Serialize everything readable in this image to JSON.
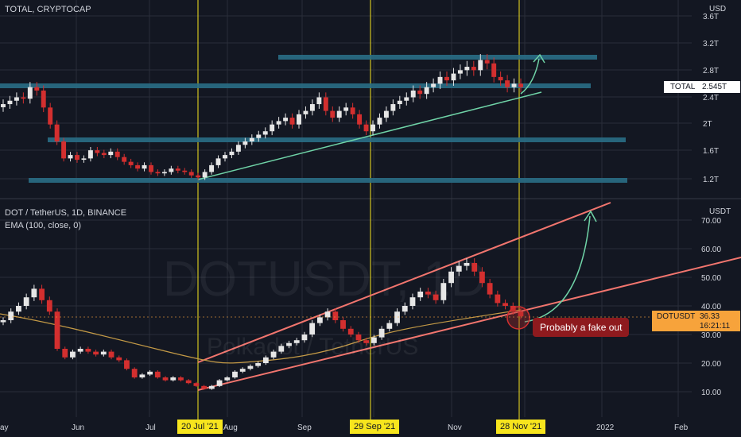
{
  "top_panel": {
    "title": "TOTAL, CRYPTOCAP",
    "currency": "USD",
    "ticker_label": "TOTAL",
    "ticker_value": "2.545T"
  },
  "bottom_panel": {
    "title": "DOT / TetherUS, 1D, BINANCE",
    "indicator": "EMA (100, close, 0)",
    "currency": "USDT",
    "ticker_label": "DOTUSDT",
    "ticker_value": "36.33",
    "countdown": "16:21:11",
    "watermark_big": "DOTUSDT, 1D",
    "watermark_small": "Polkadot / TetherUS"
  },
  "annotation": "Probably a fake out",
  "x_axis": {
    "months": [
      "ay",
      "Jun",
      "Jul",
      "Aug",
      "Sep",
      "Nov",
      "2022",
      "Feb"
    ],
    "highlighted_dates": [
      "20 Jul '21",
      "29 Sep '21",
      "28 Nov '21"
    ]
  },
  "colors": {
    "background": "#131722",
    "up_candle": "#e6e6e6",
    "down_candle": "#d32f2f",
    "support_zone": "#2a6e86",
    "trendline_top": "#f2756e",
    "trendline_green": "#6fd3a7",
    "ema": "#c49a46",
    "vertical_marker": "#f7e51d",
    "annotation_bg": "#8e1a1e"
  },
  "chart_data": [
    {
      "type": "candlestick",
      "symbol": "TOTAL, CRYPTOCAP",
      "yaxis_labels": [
        "1.2T",
        "1.6T",
        "2T",
        "2.4T",
        "2.8T",
        "3.2T",
        "3.6T"
      ],
      "yaxis_unit": "USD",
      "current_value": "2.545T",
      "horizontal_zones": [
        "2.95T",
        "2.62T",
        "1.75T",
        "1.22T"
      ],
      "series_close_T": [
        2.3,
        2.35,
        2.4,
        2.38,
        2.55,
        2.5,
        2.25,
        2.0,
        1.75,
        1.5,
        1.55,
        1.48,
        1.5,
        1.62,
        1.58,
        1.55,
        1.6,
        1.52,
        1.45,
        1.4,
        1.35,
        1.4,
        1.3,
        1.28,
        1.3,
        1.35,
        1.32,
        1.3,
        1.25,
        1.22,
        1.3,
        1.4,
        1.5,
        1.55,
        1.6,
        1.7,
        1.75,
        1.8,
        1.85,
        1.9,
        2.0,
        2.05,
        2.1,
        2.0,
        2.15,
        2.2,
        2.3,
        2.4,
        2.2,
        2.1,
        2.2,
        2.25,
        2.15,
        2.0,
        1.9,
        2.0,
        2.1,
        2.2,
        2.3,
        2.35,
        2.4,
        2.5,
        2.45,
        2.55,
        2.6,
        2.7,
        2.65,
        2.75,
        2.8,
        2.85,
        2.8,
        2.95,
        2.9,
        2.7,
        2.65,
        2.55,
        2.6,
        2.55
      ]
    },
    {
      "type": "candlestick",
      "symbol": "DOT / TetherUS, 1D, BINANCE",
      "indicator": "EMA (100, close, 0)",
      "yaxis_labels": [
        "10.00",
        "20.00",
        "30.00",
        "40.00",
        "50.00",
        "60.00",
        "70.00"
      ],
      "yaxis_unit": "USDT",
      "current_value": 36.33,
      "series_close": [
        35,
        38,
        40,
        43,
        46,
        42,
        38,
        25,
        22,
        24,
        25,
        24,
        23,
        24,
        22,
        21,
        18,
        15,
        16,
        17,
        15,
        14,
        15,
        14,
        13,
        12,
        11,
        12,
        14,
        15,
        17,
        18,
        19,
        20,
        22,
        24,
        26,
        27,
        28,
        30,
        34,
        36,
        38,
        35,
        32,
        30,
        28,
        27,
        29,
        32,
        34,
        38,
        40,
        43,
        45,
        44,
        42,
        48,
        52,
        54,
        55,
        52,
        48,
        44,
        41,
        40,
        38,
        36.33
      ]
    }
  ]
}
